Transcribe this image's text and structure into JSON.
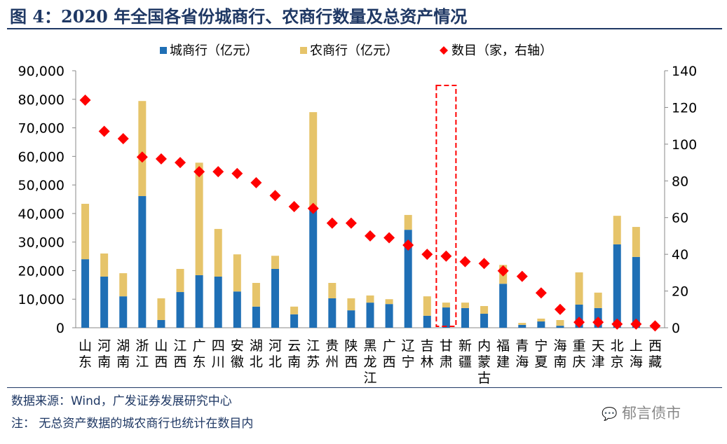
{
  "title": "图 4：2020 年全国各省份城商行、农商行数量及总资产情况",
  "footer": {
    "source": "数据来源：Wind，广发证券发展研究中心",
    "note": "注：  无总资产数据的城农商行也统计在数目内"
  },
  "watermark": "郁言债市",
  "chart_data": {
    "type": "bar",
    "stacked": true,
    "categories": [
      "山东",
      "河南",
      "湖南",
      "浙江",
      "山西",
      "江西",
      "广东",
      "四川",
      "安徽",
      "湖北",
      "河北",
      "云南",
      "江苏",
      "贵州",
      "陕西",
      "黑龙江",
      "广西",
      "辽宁",
      "吉林",
      "甘肃",
      "新疆",
      "内蒙古",
      "福建",
      "青海",
      "宁夏",
      "海南",
      "重庆",
      "天津",
      "北京",
      "上海",
      "西藏"
    ],
    "series": [
      {
        "name": "城商行（亿元）",
        "axis": "left",
        "kind": "bar",
        "color": "#1f6fb5",
        "values": [
          24000,
          17900,
          11000,
          46100,
          2700,
          12500,
          18400,
          17900,
          12700,
          7400,
          20600,
          4700,
          42200,
          10300,
          6100,
          8800,
          8300,
          34300,
          4200,
          7100,
          6900,
          4900,
          15400,
          1000,
          2200,
          700,
          8100,
          6900,
          29200,
          24800,
          0
        ]
      },
      {
        "name": "农商行（亿元）",
        "axis": "left",
        "kind": "bar",
        "color": "#e6c46a",
        "values": [
          19400,
          8100,
          8100,
          33300,
          7600,
          8100,
          39400,
          16700,
          13000,
          8300,
          4600,
          2700,
          33300,
          5400,
          4200,
          2500,
          1700,
          5200,
          6800,
          1700,
          1900,
          2700,
          6600,
          700,
          1000,
          2000,
          11300,
          5400,
          10000,
          10500,
          0
        ]
      },
      {
        "name": "数目（家，右轴）",
        "axis": "right",
        "kind": "scatter",
        "marker": "diamond",
        "color": "#ff0000",
        "values": [
          124,
          107,
          103,
          93,
          92,
          90,
          85,
          85,
          84,
          79,
          72,
          66,
          65,
          57,
          57,
          50,
          49,
          45,
          40,
          39,
          36,
          35,
          31,
          28,
          19,
          10,
          3,
          3,
          2,
          2,
          1
        ]
      }
    ],
    "yleft": {
      "lim": [
        0,
        90000
      ],
      "ticks": [
        "0",
        "10,000",
        "20,000",
        "30,000",
        "40,000",
        "50,000",
        "60,000",
        "70,000",
        "80,000",
        "90,000"
      ]
    },
    "yright": {
      "lim": [
        0,
        140
      ],
      "ticks": [
        "0",
        "20",
        "40",
        "60",
        "80",
        "100",
        "120",
        "140"
      ]
    },
    "grid": false,
    "legend": "top",
    "highlight": {
      "category": "甘肃",
      "style": "red dashed box"
    }
  }
}
